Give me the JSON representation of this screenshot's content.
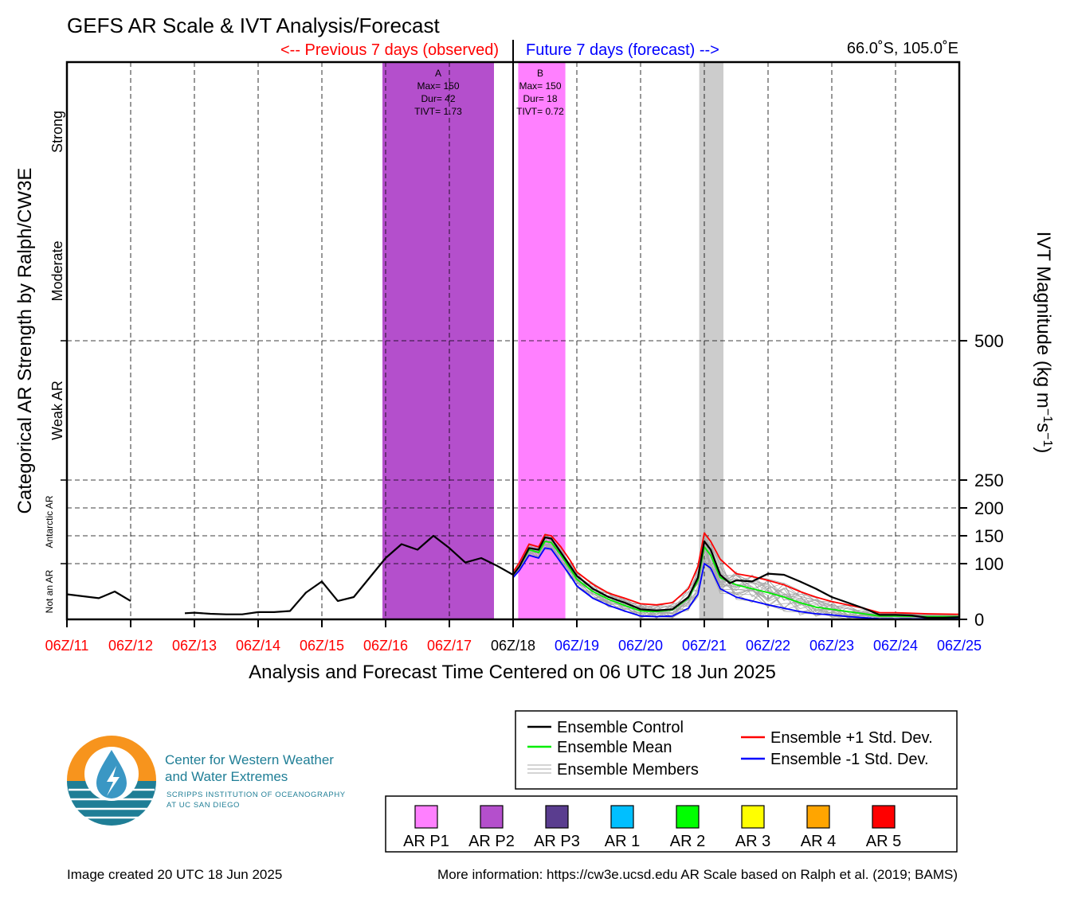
{
  "chart_data": {
    "type": "line",
    "title": "GEFS AR Scale & IVT Analysis/Forecast",
    "observed_label": "<-- Previous 7 days (observed)",
    "forecast_label": "Future 7 days (forecast) -->",
    "location": "66.0˚S, 105.0˚E",
    "xlabel": "Analysis and Forecast Time Centered on 06 UTC 18 Jun 2025",
    "ylabel_left": "Categorical AR Strength by Ralph/CW3E",
    "ylabel_right": "IVT Magnitude (kg m",
    "ylabel_right_sup1": "−1",
    "ylabel_right_mid": "s",
    "ylabel_right_sup2": "−1",
    "ylabel_right_end": ")",
    "x_ticks": [
      "06Z/11",
      "06Z/12",
      "06Z/13",
      "06Z/14",
      "06Z/15",
      "06Z/16",
      "06Z/17",
      "06Z/18",
      "06Z/19",
      "06Z/20",
      "06Z/21",
      "06Z/22",
      "06Z/23",
      "06Z/24",
      "06Z/25"
    ],
    "x_tick_colors": [
      "#ff0000",
      "#ff0000",
      "#ff0000",
      "#ff0000",
      "#ff0000",
      "#ff0000",
      "#ff0000",
      "#000000",
      "#0000ff",
      "#0000ff",
      "#0000ff",
      "#0000ff",
      "#0000ff",
      "#0000ff",
      "#0000ff"
    ],
    "y_ticks": [
      0,
      100,
      150,
      200,
      250,
      500
    ],
    "ylim": [
      0,
      1000
    ],
    "xlim_days": [
      0,
      14
    ],
    "categories_left": [
      {
        "label": "Not an AR",
        "from": 0,
        "to": 100,
        "size": "small"
      },
      {
        "label": "Antarctic AR",
        "from": 100,
        "to": 250,
        "size": "small"
      },
      {
        "label": "Weak AR",
        "from": 250,
        "to": 500,
        "size": "large"
      },
      {
        "label": "Moderate",
        "from": 500,
        "to": 750,
        "size": "large"
      },
      {
        "label": "Strong",
        "from": 750,
        "to": 1000,
        "size": "large"
      }
    ],
    "events": [
      {
        "id": "A",
        "max": "Max= 150",
        "dur": "Dur= 42",
        "tivt": "TIVT= 1.73",
        "start_day": 4.95,
        "end_day": 6.7,
        "color": "#b44fcc"
      },
      {
        "id": "B",
        "max": "Max= 150",
        "dur": "Dur= 18",
        "tivt": "TIVT= 0.72",
        "start_day": 7.08,
        "end_day": 7.82,
        "color": "#ff80ff"
      }
    ],
    "gray_band": {
      "start_day": 9.92,
      "end_day": 10.3,
      "color": "#cccccc"
    },
    "series": [
      {
        "name": "Ensemble Control",
        "color": "#000000",
        "segments": [
          [
            [
              0,
              45
            ],
            [
              0.5,
              38
            ],
            [
              0.75,
              50
            ],
            [
              1,
              33
            ]
          ],
          [
            [
              1.85,
              11
            ],
            [
              2,
              12
            ],
            [
              2.25,
              10
            ],
            [
              2.5,
              9
            ],
            [
              2.75,
              9
            ],
            [
              3,
              13
            ],
            [
              3.25,
              13
            ],
            [
              3.5,
              15
            ],
            [
              3.75,
              48
            ],
            [
              4,
              68
            ],
            [
              4.25,
              33
            ],
            [
              4.5,
              40
            ],
            [
              4.75,
              75
            ],
            [
              5,
              110
            ],
            [
              5.25,
              135
            ],
            [
              5.5,
              125
            ],
            [
              5.75,
              150
            ],
            [
              6,
              128
            ],
            [
              6.25,
              102
            ],
            [
              6.5,
              110
            ],
            [
              6.75,
              96
            ],
            [
              7,
              80
            ]
          ],
          [
            [
              7,
              80
            ],
            [
              7.1,
              95
            ],
            [
              7.25,
              128
            ],
            [
              7.4,
              125
            ],
            [
              7.5,
              147
            ],
            [
              7.6,
              145
            ],
            [
              7.75,
              120
            ],
            [
              7.9,
              95
            ],
            [
              8,
              78
            ],
            [
              8.25,
              55
            ],
            [
              8.5,
              40
            ],
            [
              8.75,
              30
            ],
            [
              9,
              18
            ],
            [
              9.25,
              16
            ],
            [
              9.5,
              18
            ],
            [
              9.75,
              40
            ],
            [
              9.9,
              75
            ],
            [
              10,
              140
            ],
            [
              10.1,
              125
            ],
            [
              10.25,
              80
            ],
            [
              10.4,
              65
            ],
            [
              10.5,
              70
            ],
            [
              10.75,
              68
            ],
            [
              11,
              82
            ],
            [
              11.25,
              80
            ],
            [
              11.5,
              68
            ],
            [
              11.75,
              55
            ],
            [
              12,
              40
            ],
            [
              12.25,
              30
            ],
            [
              12.5,
              20
            ],
            [
              12.75,
              8
            ],
            [
              13,
              8
            ],
            [
              13.25,
              7
            ],
            [
              13.5,
              3
            ],
            [
              13.75,
              3
            ],
            [
              14,
              4
            ]
          ]
        ]
      },
      {
        "name": "Ensemble Mean",
        "color": "#00ee00",
        "segments": [
          [
            [
              7,
              80
            ],
            [
              7.1,
              95
            ],
            [
              7.25,
              125
            ],
            [
              7.4,
              120
            ],
            [
              7.5,
              140
            ],
            [
              7.6,
              138
            ],
            [
              7.75,
              115
            ],
            [
              7.9,
              90
            ],
            [
              8,
              72
            ],
            [
              8.25,
              50
            ],
            [
              8.5,
              36
            ],
            [
              8.75,
              25
            ],
            [
              9,
              15
            ],
            [
              9.25,
              14
            ],
            [
              9.5,
              17
            ],
            [
              9.75,
              38
            ],
            [
              9.9,
              70
            ],
            [
              10,
              130
            ],
            [
              10.1,
              115
            ],
            [
              10.25,
              75
            ],
            [
              10.5,
              62
            ],
            [
              10.75,
              55
            ],
            [
              11,
              48
            ],
            [
              11.25,
              40
            ],
            [
              11.5,
              30
            ],
            [
              11.75,
              22
            ],
            [
              12,
              18
            ],
            [
              12.25,
              14
            ],
            [
              12.5,
              10
            ],
            [
              12.75,
              6
            ],
            [
              13,
              6
            ],
            [
              13.5,
              5
            ],
            [
              14,
              5
            ]
          ]
        ]
      },
      {
        "name": "Ensemble +1 Std. Dev.",
        "color": "#ff0000",
        "segments": [
          [
            [
              7,
              85
            ],
            [
              7.1,
              102
            ],
            [
              7.25,
              135
            ],
            [
              7.4,
              130
            ],
            [
              7.5,
              152
            ],
            [
              7.6,
              150
            ],
            [
              7.75,
              130
            ],
            [
              7.9,
              105
            ],
            [
              8,
              85
            ],
            [
              8.25,
              63
            ],
            [
              8.5,
              47
            ],
            [
              8.75,
              38
            ],
            [
              9,
              28
            ],
            [
              9.25,
              26
            ],
            [
              9.5,
              30
            ],
            [
              9.75,
              55
            ],
            [
              9.9,
              95
            ],
            [
              10,
              155
            ],
            [
              10.1,
              140
            ],
            [
              10.25,
              108
            ],
            [
              10.5,
              82
            ],
            [
              10.75,
              77
            ],
            [
              11,
              70
            ],
            [
              11.25,
              62
            ],
            [
              11.5,
              50
            ],
            [
              11.75,
              40
            ],
            [
              12,
              32
            ],
            [
              12.25,
              26
            ],
            [
              12.5,
              20
            ],
            [
              12.75,
              12
            ],
            [
              13,
              12
            ],
            [
              13.5,
              10
            ],
            [
              14,
              9
            ]
          ]
        ]
      },
      {
        "name": "Ensemble -1 Std. Dev.",
        "color": "#0000ff",
        "segments": [
          [
            [
              7,
              75
            ],
            [
              7.1,
              88
            ],
            [
              7.25,
              115
            ],
            [
              7.4,
              110
            ],
            [
              7.5,
              128
            ],
            [
              7.6,
              126
            ],
            [
              7.75,
              102
            ],
            [
              7.9,
              78
            ],
            [
              8,
              60
            ],
            [
              8.25,
              38
            ],
            [
              8.5,
              25
            ],
            [
              8.75,
              15
            ],
            [
              9,
              6
            ],
            [
              9.25,
              5
            ],
            [
              9.5,
              6
            ],
            [
              9.75,
              20
            ],
            [
              9.9,
              45
            ],
            [
              10,
              100
            ],
            [
              10.1,
              92
            ],
            [
              10.25,
              55
            ],
            [
              10.5,
              40
            ],
            [
              10.75,
              33
            ],
            [
              11,
              26
            ],
            [
              11.25,
              20
            ],
            [
              11.5,
              14
            ],
            [
              11.75,
              10
            ],
            [
              12,
              8
            ],
            [
              12.25,
              5
            ],
            [
              12.5,
              3
            ],
            [
              12.75,
              1
            ],
            [
              13,
              1
            ],
            [
              13.5,
              1
            ],
            [
              14,
              1
            ]
          ]
        ]
      }
    ]
  },
  "legend": {
    "items": [
      {
        "label": "Ensemble Control",
        "color": "#000000",
        "style": "single"
      },
      {
        "label": "Ensemble Mean",
        "color": "#00ee00",
        "style": "single"
      },
      {
        "label": "Ensemble Members",
        "color": "#aaaaaa",
        "style": "triple"
      },
      {
        "label": "Ensemble +1 Std. Dev.",
        "color": "#ff0000",
        "style": "single"
      },
      {
        "label": "Ensemble -1 Std. Dev.",
        "color": "#0000ff",
        "style": "single"
      }
    ]
  },
  "ar_scale_legend": [
    {
      "label": "AR P1",
      "color": "#ff80ff"
    },
    {
      "label": "AR P2",
      "color": "#b44fcc"
    },
    {
      "label": "AR P3",
      "color": "#5a3d8f"
    },
    {
      "label": "AR 1",
      "color": "#00bfff"
    },
    {
      "label": "AR 2",
      "color": "#00ff00"
    },
    {
      "label": "AR 3",
      "color": "#ffff00"
    },
    {
      "label": "AR 4",
      "color": "#ffa500"
    },
    {
      "label": "AR 5",
      "color": "#ff0000"
    }
  ],
  "logo": {
    "line1": "Center for Western Weather",
    "line2": "and Water Extremes",
    "line3": "SCRIPPS INSTITUTION OF OCEANOGRAPHY",
    "line4": "AT UC SAN DIEGO",
    "orange": "#f7941d",
    "teal": "#1f7e96"
  },
  "footer": {
    "created": "Image created 20 UTC 18 Jun 2025",
    "info": "More information: https://cw3e.ucsd.edu AR Scale based on Ralph et al. (2019; BAMS)"
  }
}
